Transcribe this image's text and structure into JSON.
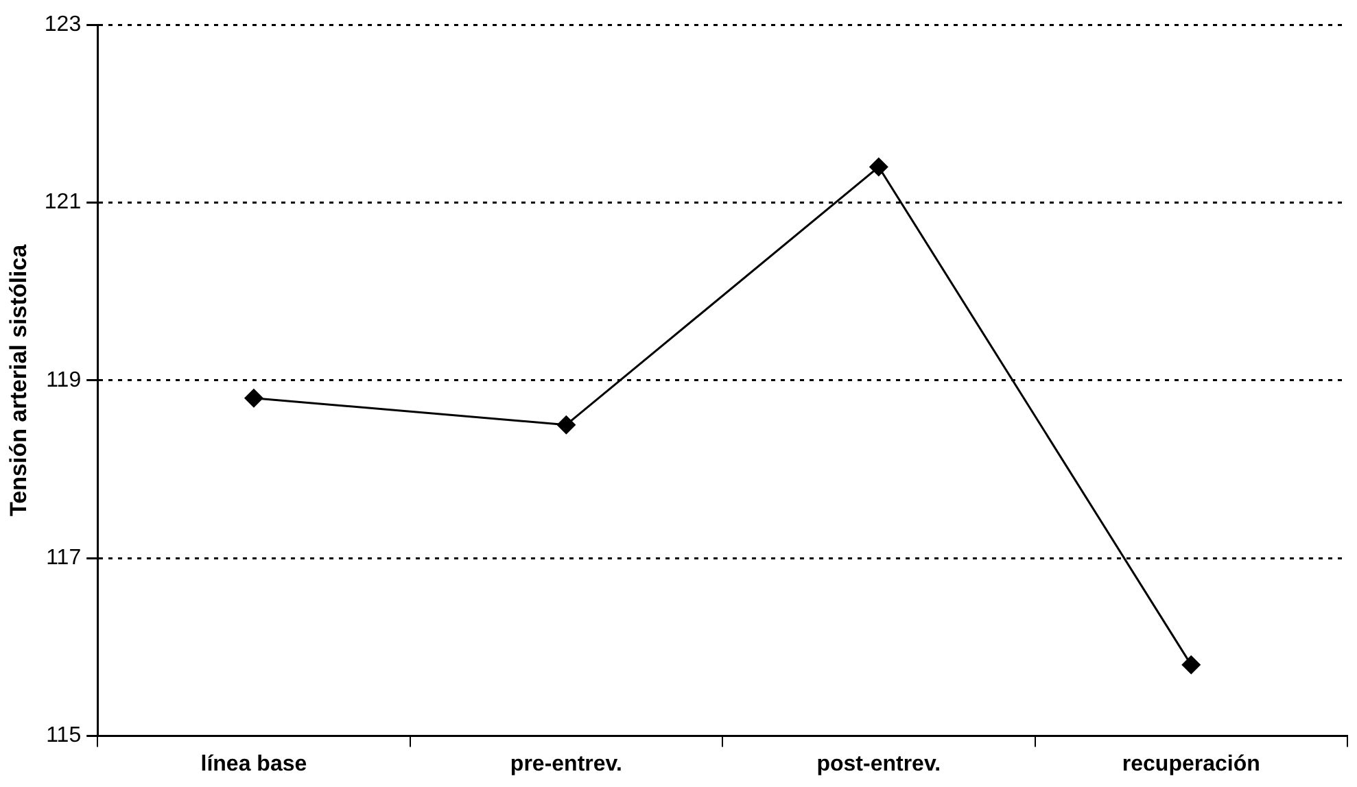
{
  "chart_data": {
    "type": "line",
    "ylabel": "Tensión arterial sistólica",
    "categories": [
      "línea base",
      "pre-entrev.",
      "post-entrev.",
      "recuperación"
    ],
    "series": [
      {
        "color": "#000000",
        "values": [
          118.8,
          118.5,
          121.4,
          115.8
        ]
      }
    ],
    "ylim": [
      115,
      123
    ],
    "yticks": [
      115,
      117,
      119,
      121,
      123
    ],
    "grid": "y",
    "legend": false,
    "marker": "diamond",
    "line_style": "solid"
  }
}
